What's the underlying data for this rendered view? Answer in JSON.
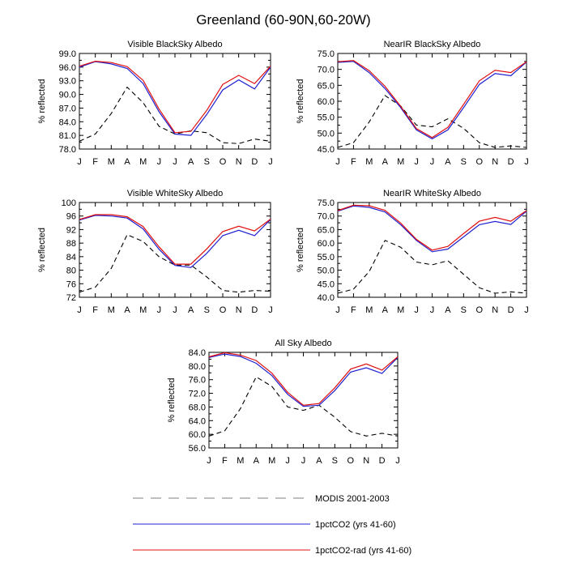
{
  "figure": {
    "title": "Greenland (60-90N,60-20W)"
  },
  "colors": {
    "modis": "#000000",
    "co2": "#2020d0",
    "co2rad": "#e01010"
  },
  "legend": [
    {
      "label": "MODIS 2001-2003",
      "style": "dashed",
      "color": "#000000"
    },
    {
      "label": "1pctCO2 (yrs 41-60)",
      "style": "solid",
      "color": "#2020d0"
    },
    {
      "label": "1pctCO2-rad (yrs 41-60)",
      "style": "solid",
      "color": "#e01010"
    }
  ],
  "chart_data": [
    {
      "type": "line",
      "title": "Visible BlackSky Albedo",
      "ylabel": "% reflected",
      "categories": [
        "J",
        "F",
        "M",
        "A",
        "M",
        "J",
        "J",
        "A",
        "S",
        "O",
        "N",
        "D",
        "J"
      ],
      "ylim": [
        78.0,
        99.0
      ],
      "yticks": [
        "78.0",
        "81.0",
        "84.0",
        "87.0",
        "90.0",
        "93.0",
        "96.0",
        "99.0"
      ],
      "series": [
        {
          "name": "MODIS 2001-2003",
          "values": [
            79.7,
            81.3,
            85.8,
            91.6,
            88.2,
            83.0,
            81.3,
            82.0,
            81.6,
            79.4,
            79.2,
            80.2,
            79.7
          ]
        },
        {
          "name": "1pctCO2 (yrs 41-60)",
          "values": [
            96.0,
            97.2,
            96.7,
            95.7,
            92.4,
            86.2,
            81.3,
            81.0,
            85.6,
            91.0,
            93.2,
            91.2,
            96.0
          ]
        },
        {
          "name": "1pctCO2-rad (yrs 41-60)",
          "values": [
            96.2,
            97.3,
            97.0,
            96.1,
            93.1,
            86.8,
            81.6,
            81.9,
            86.5,
            92.2,
            94.2,
            92.4,
            96.2
          ]
        }
      ]
    },
    {
      "type": "line",
      "title": "NearIR BlackSky Albedo",
      "ylabel": "% reflected",
      "categories": [
        "J",
        "F",
        "M",
        "A",
        "M",
        "J",
        "J",
        "A",
        "S",
        "O",
        "N",
        "D",
        "J"
      ],
      "ylim": [
        45.0,
        75.0
      ],
      "yticks": [
        "45.0",
        "50.0",
        "55.0",
        "60.0",
        "65.0",
        "70.0",
        "75.0"
      ],
      "series": [
        {
          "name": "MODIS 2001-2003",
          "values": [
            45.5,
            47.0,
            53.5,
            61.8,
            58.5,
            52.5,
            52.0,
            54.5,
            51.5,
            47.0,
            45.5,
            46.0,
            45.5
          ]
        },
        {
          "name": "1pctCO2 (yrs 41-60)",
          "values": [
            72.2,
            72.5,
            69.0,
            64.0,
            58.0,
            51.0,
            48.2,
            51.0,
            58.0,
            65.3,
            68.7,
            68.0,
            72.3
          ]
        },
        {
          "name": "1pctCO2-rad (yrs 41-60)",
          "values": [
            72.4,
            72.8,
            69.6,
            64.7,
            58.4,
            51.4,
            48.6,
            51.8,
            59.0,
            66.4,
            69.7,
            69.0,
            72.4
          ]
        }
      ]
    },
    {
      "type": "line",
      "title": "Visible WhiteSky Albedo",
      "ylabel": "% reflected",
      "categories": [
        "J",
        "F",
        "M",
        "A",
        "M",
        "J",
        "J",
        "A",
        "S",
        "O",
        "N",
        "D",
        "J"
      ],
      "ylim": [
        72,
        100
      ],
      "yticks": [
        "72",
        "76",
        "80",
        "84",
        "88",
        "92",
        "96",
        "100"
      ],
      "series": [
        {
          "name": "MODIS 2001-2003",
          "values": [
            73.5,
            75.0,
            80.5,
            90.5,
            88.5,
            84.0,
            81.5,
            81.5,
            78.0,
            74.0,
            73.5,
            74.0,
            73.8
          ]
        },
        {
          "name": "1pctCO2 (yrs 41-60)",
          "values": [
            94.8,
            96.2,
            96.0,
            95.4,
            92.2,
            86.2,
            81.4,
            80.8,
            85.0,
            90.2,
            91.8,
            90.2,
            95.0
          ]
        },
        {
          "name": "1pctCO2-rad (yrs 41-60)",
          "values": [
            95.0,
            96.4,
            96.4,
            95.8,
            92.9,
            86.9,
            81.8,
            81.8,
            86.3,
            91.4,
            93.0,
            91.6,
            95.1
          ]
        }
      ]
    },
    {
      "type": "line",
      "title": "NearIR WhiteSky Albedo",
      "ylabel": "% reflected",
      "categories": [
        "J",
        "F",
        "M",
        "A",
        "M",
        "J",
        "J",
        "A",
        "S",
        "O",
        "N",
        "D",
        "J"
      ],
      "ylim": [
        40.0,
        75.0
      ],
      "yticks": [
        "40.0",
        "45.0",
        "50.0",
        "55.0",
        "60.0",
        "65.0",
        "70.0",
        "75.0"
      ],
      "series": [
        {
          "name": "MODIS 2001-2003",
          "values": [
            41.5,
            43.0,
            49.5,
            61.0,
            58.5,
            53.0,
            52.0,
            53.5,
            48.5,
            43.5,
            41.5,
            42.0,
            41.5
          ]
        },
        {
          "name": "1pctCO2 (yrs 41-60)",
          "values": [
            71.8,
            73.7,
            73.2,
            71.5,
            66.8,
            61.0,
            56.8,
            57.8,
            62.3,
            66.8,
            68.0,
            66.9,
            71.8
          ]
        },
        {
          "name": "1pctCO2-rad (yrs 41-60)",
          "values": [
            72.0,
            74.0,
            73.8,
            72.1,
            67.4,
            61.4,
            57.4,
            58.8,
            63.5,
            68.1,
            69.5,
            68.1,
            72.0
          ]
        }
      ]
    },
    {
      "type": "line",
      "title": "All Sky Albedo",
      "ylabel": "% reflected",
      "categories": [
        "J",
        "F",
        "M",
        "A",
        "M",
        "J",
        "J",
        "A",
        "S",
        "O",
        "N",
        "D",
        "J"
      ],
      "ylim": [
        56.0,
        84.0
      ],
      "yticks": [
        "56.0",
        "60.0",
        "64.0",
        "68.0",
        "72.0",
        "76.0",
        "80.0",
        "84.0"
      ],
      "series": [
        {
          "name": "MODIS 2001-2003",
          "values": [
            59.5,
            61.0,
            67.5,
            76.8,
            74.0,
            68.0,
            67.0,
            68.5,
            65.0,
            60.8,
            59.5,
            60.3,
            59.5
          ]
        },
        {
          "name": "1pctCO2 (yrs 41-60)",
          "values": [
            82.5,
            83.5,
            82.8,
            80.8,
            77.2,
            71.7,
            68.2,
            68.5,
            72.8,
            78.2,
            79.5,
            77.8,
            82.5
          ]
        },
        {
          "name": "1pctCO2-rad (yrs 41-60)",
          "values": [
            82.7,
            83.9,
            83.2,
            81.6,
            77.9,
            72.3,
            68.5,
            69.0,
            73.6,
            79.1,
            80.6,
            78.8,
            82.7
          ]
        }
      ]
    }
  ]
}
